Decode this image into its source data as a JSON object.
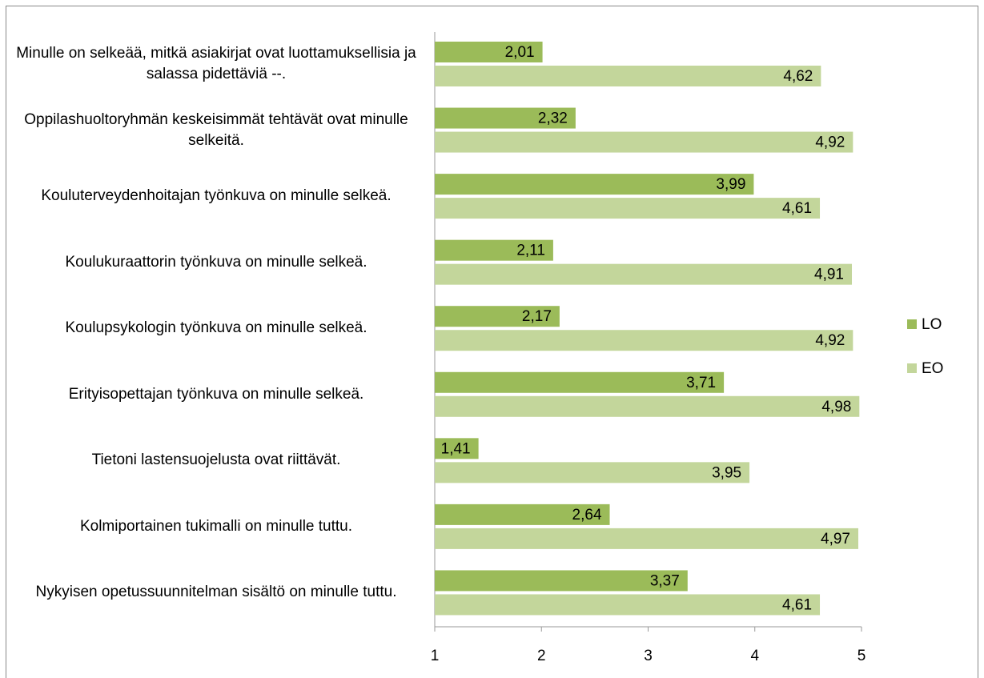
{
  "chart_data": {
    "type": "bar",
    "orientation": "horizontal",
    "categories": [
      "Minulle on selkeää, mitkä asiakirjat ovat luottamuksellisia ja salassa pidettäviä --.",
      "Oppilashuoltoryhmän keskeisimmät tehtävät ovat minulle selkeitä.",
      "Kouluterveydenhoitajan työnkuva on minulle selkeä.",
      "Koulukuraattorin työnkuva on minulle selkeä.",
      "Koulupsykologin työnkuva on minulle selkeä.",
      "Erityisopettajan työnkuva on minulle selkeä.",
      "Tietoni lastensuojelusta ovat riittävät.",
      "Kolmiportainen tukimalli on minulle tuttu.",
      "Nykyisen opetussuunnitelman sisältö on minulle tuttu."
    ],
    "series": [
      {
        "name": "LO",
        "color": "#9bbb59",
        "values": [
          2.01,
          2.32,
          3.99,
          2.11,
          2.17,
          3.71,
          1.41,
          2.64,
          3.37
        ],
        "value_labels": [
          "2,01",
          "2,32",
          "3,99",
          "2,11",
          "2,17",
          "3,71",
          "1,41",
          "2,64",
          "3,37"
        ]
      },
      {
        "name": "EO",
        "color": "#c3d69b",
        "values": [
          4.62,
          4.92,
          4.61,
          4.91,
          4.92,
          4.98,
          3.95,
          4.97,
          4.61
        ],
        "value_labels": [
          "4,62",
          "4,92",
          "4,61",
          "4,91",
          "4,92",
          "4,98",
          "3,95",
          "4,97",
          "4,61"
        ]
      }
    ],
    "xlim": [
      1,
      5
    ],
    "xticks": [
      1,
      2,
      3,
      4,
      5
    ],
    "legend": "right"
  }
}
